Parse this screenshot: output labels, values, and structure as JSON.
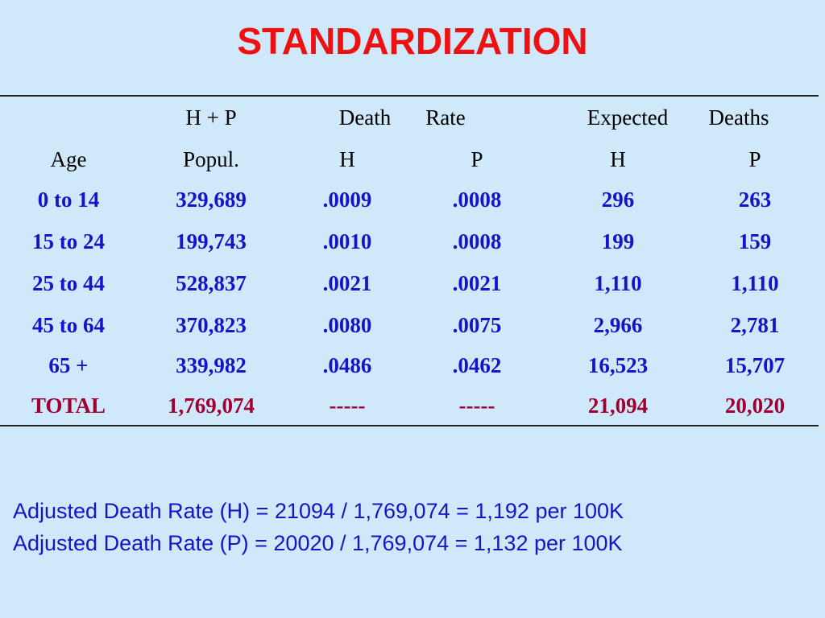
{
  "title": "STANDARDIZATION",
  "header_row1": [
    "",
    "H + P",
    "Death",
    "Rate",
    "Expected",
    "Deaths"
  ],
  "header_row2": [
    "Age",
    "Popul.",
    "H",
    "P",
    "H",
    "P"
  ],
  "rows": [
    [
      "0 to 14",
      "329,689",
      ".0009",
      ".0008",
      "296",
      "263"
    ],
    [
      "15 to 24",
      "199,743",
      ".0010",
      ".0008",
      "199",
      "159"
    ],
    [
      "25 to 44",
      "528,837",
      ".0021",
      ".0021",
      "1,110",
      "1,110"
    ],
    [
      "45 to 64",
      "370,823",
      ".0080",
      ".0075",
      "2,966",
      "2,781"
    ],
    [
      "65 +",
      "339,982",
      ".0486",
      ".0462",
      "16,523",
      "15,707"
    ]
  ],
  "total_row": [
    "TOTAL",
    "1,769,074",
    "-----",
    "-----",
    "21,094",
    "20,020"
  ],
  "formulas": [
    "Adjusted Death Rate (H) = 21094 / 1,769,074 = 1,192 per 100K",
    "Adjusted Death Rate (P) = 20020 / 1,769,074 = 1,132 per 100K"
  ],
  "colors": {
    "background": "#cfe9fb",
    "title": "#ee1111",
    "body_text": "#1414c8",
    "total_text": "#a00030"
  }
}
